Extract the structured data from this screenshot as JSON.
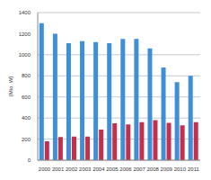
{
  "chart_data": {
    "type": "bar",
    "y_label": "[Mio. W]",
    "categories": [
      "2000",
      "2001",
      "2002",
      "2003",
      "2004",
      "2005",
      "2006",
      "2007",
      "2008",
      "2009",
      "2010",
      "2011"
    ],
    "series": [
      {
        "color": "#3f8fd8",
        "values": [
          1300,
          1200,
          1110,
          1130,
          1120,
          1110,
          1150,
          1150,
          1060,
          880,
          740,
          800
        ]
      },
      {
        "color": "#c4304c",
        "values": [
          180,
          220,
          225,
          225,
          290,
          350,
          340,
          360,
          380,
          355,
          330,
          360
        ]
      }
    ],
    "ylim": [
      0,
      1400
    ],
    "yticks": [
      0,
      200,
      400,
      600,
      800,
      1000,
      1200,
      1400
    ],
    "grid": true
  }
}
